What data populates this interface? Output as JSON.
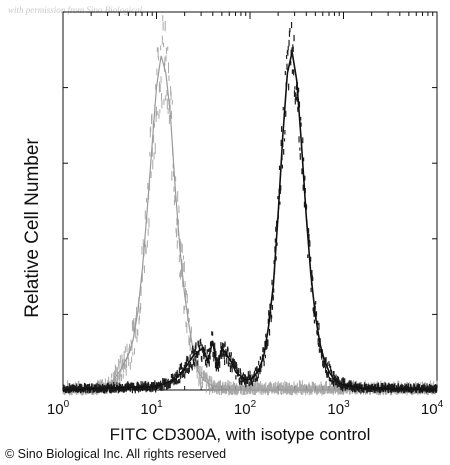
{
  "watermark": "with permission from Sino Biological",
  "copyright": "© Sino Biological Inc. All rights reserved",
  "chart_data": {
    "type": "line",
    "x_scale": "log",
    "xlim": [
      1,
      10000
    ],
    "ylim": [
      0,
      100
    ],
    "xlabel": "FITC CD300A, with isotype control",
    "ylabel": "Relative Cell Number",
    "x_ticks": [
      {
        "base": "10",
        "exp": "0",
        "value": 1
      },
      {
        "base": "10",
        "exp": "1",
        "value": 10
      },
      {
        "base": "10",
        "exp": "2",
        "value": 100
      },
      {
        "base": "10",
        "exp": "3",
        "value": 1000
      },
      {
        "base": "10",
        "exp": "4",
        "value": 10000
      }
    ],
    "series": [
      {
        "color": "#9a9a9a",
        "style": "grainy-band",
        "x": [
          1.0,
          2.0,
          3.0,
          3.5,
          4.2,
          5.0,
          5.6,
          6.3,
          7.1,
          8.0,
          9.0,
          10.0,
          11.2,
          12.6,
          14.1,
          15.8,
          17.8,
          20.0,
          22.4,
          25.1,
          28.2,
          31.6,
          35.5,
          39.8,
          44.7,
          50.1,
          63.1,
          100,
          1000,
          10000
        ],
        "y": [
          0,
          0,
          1,
          3,
          6,
          10,
          14,
          22,
          35,
          52,
          70,
          86,
          95,
          90,
          78,
          58,
          40,
          27,
          18,
          10,
          5,
          3,
          2,
          1,
          1,
          0.5,
          0,
          0,
          0,
          0
        ]
      },
      {
        "color": "#111111",
        "style": "dense-band",
        "x": [
          1.0,
          3.0,
          10.0,
          15.8,
          20.0,
          25.1,
          31.6,
          35.5,
          39.8,
          44.7,
          50.1,
          56.2,
          63.1,
          70.8,
          79.4,
          89.1,
          100,
          112,
          126,
          141,
          158,
          178,
          200,
          224,
          251,
          282,
          316,
          355,
          398,
          447,
          501,
          562,
          631,
          708,
          794,
          891,
          1000,
          1259,
          1585,
          2000,
          3162,
          5012,
          10000
        ],
        "y": [
          0,
          0.5,
          1,
          3,
          6,
          10,
          12,
          8,
          14,
          6,
          12,
          10,
          8,
          5,
          4,
          3,
          3,
          4,
          6,
          10,
          18,
          30,
          50,
          72,
          90,
          96,
          88,
          70,
          50,
          33,
          21,
          13,
          8,
          5,
          3,
          2,
          1.5,
          1,
          0.5,
          0.5,
          0.3,
          0.2,
          0.2
        ]
      }
    ]
  }
}
